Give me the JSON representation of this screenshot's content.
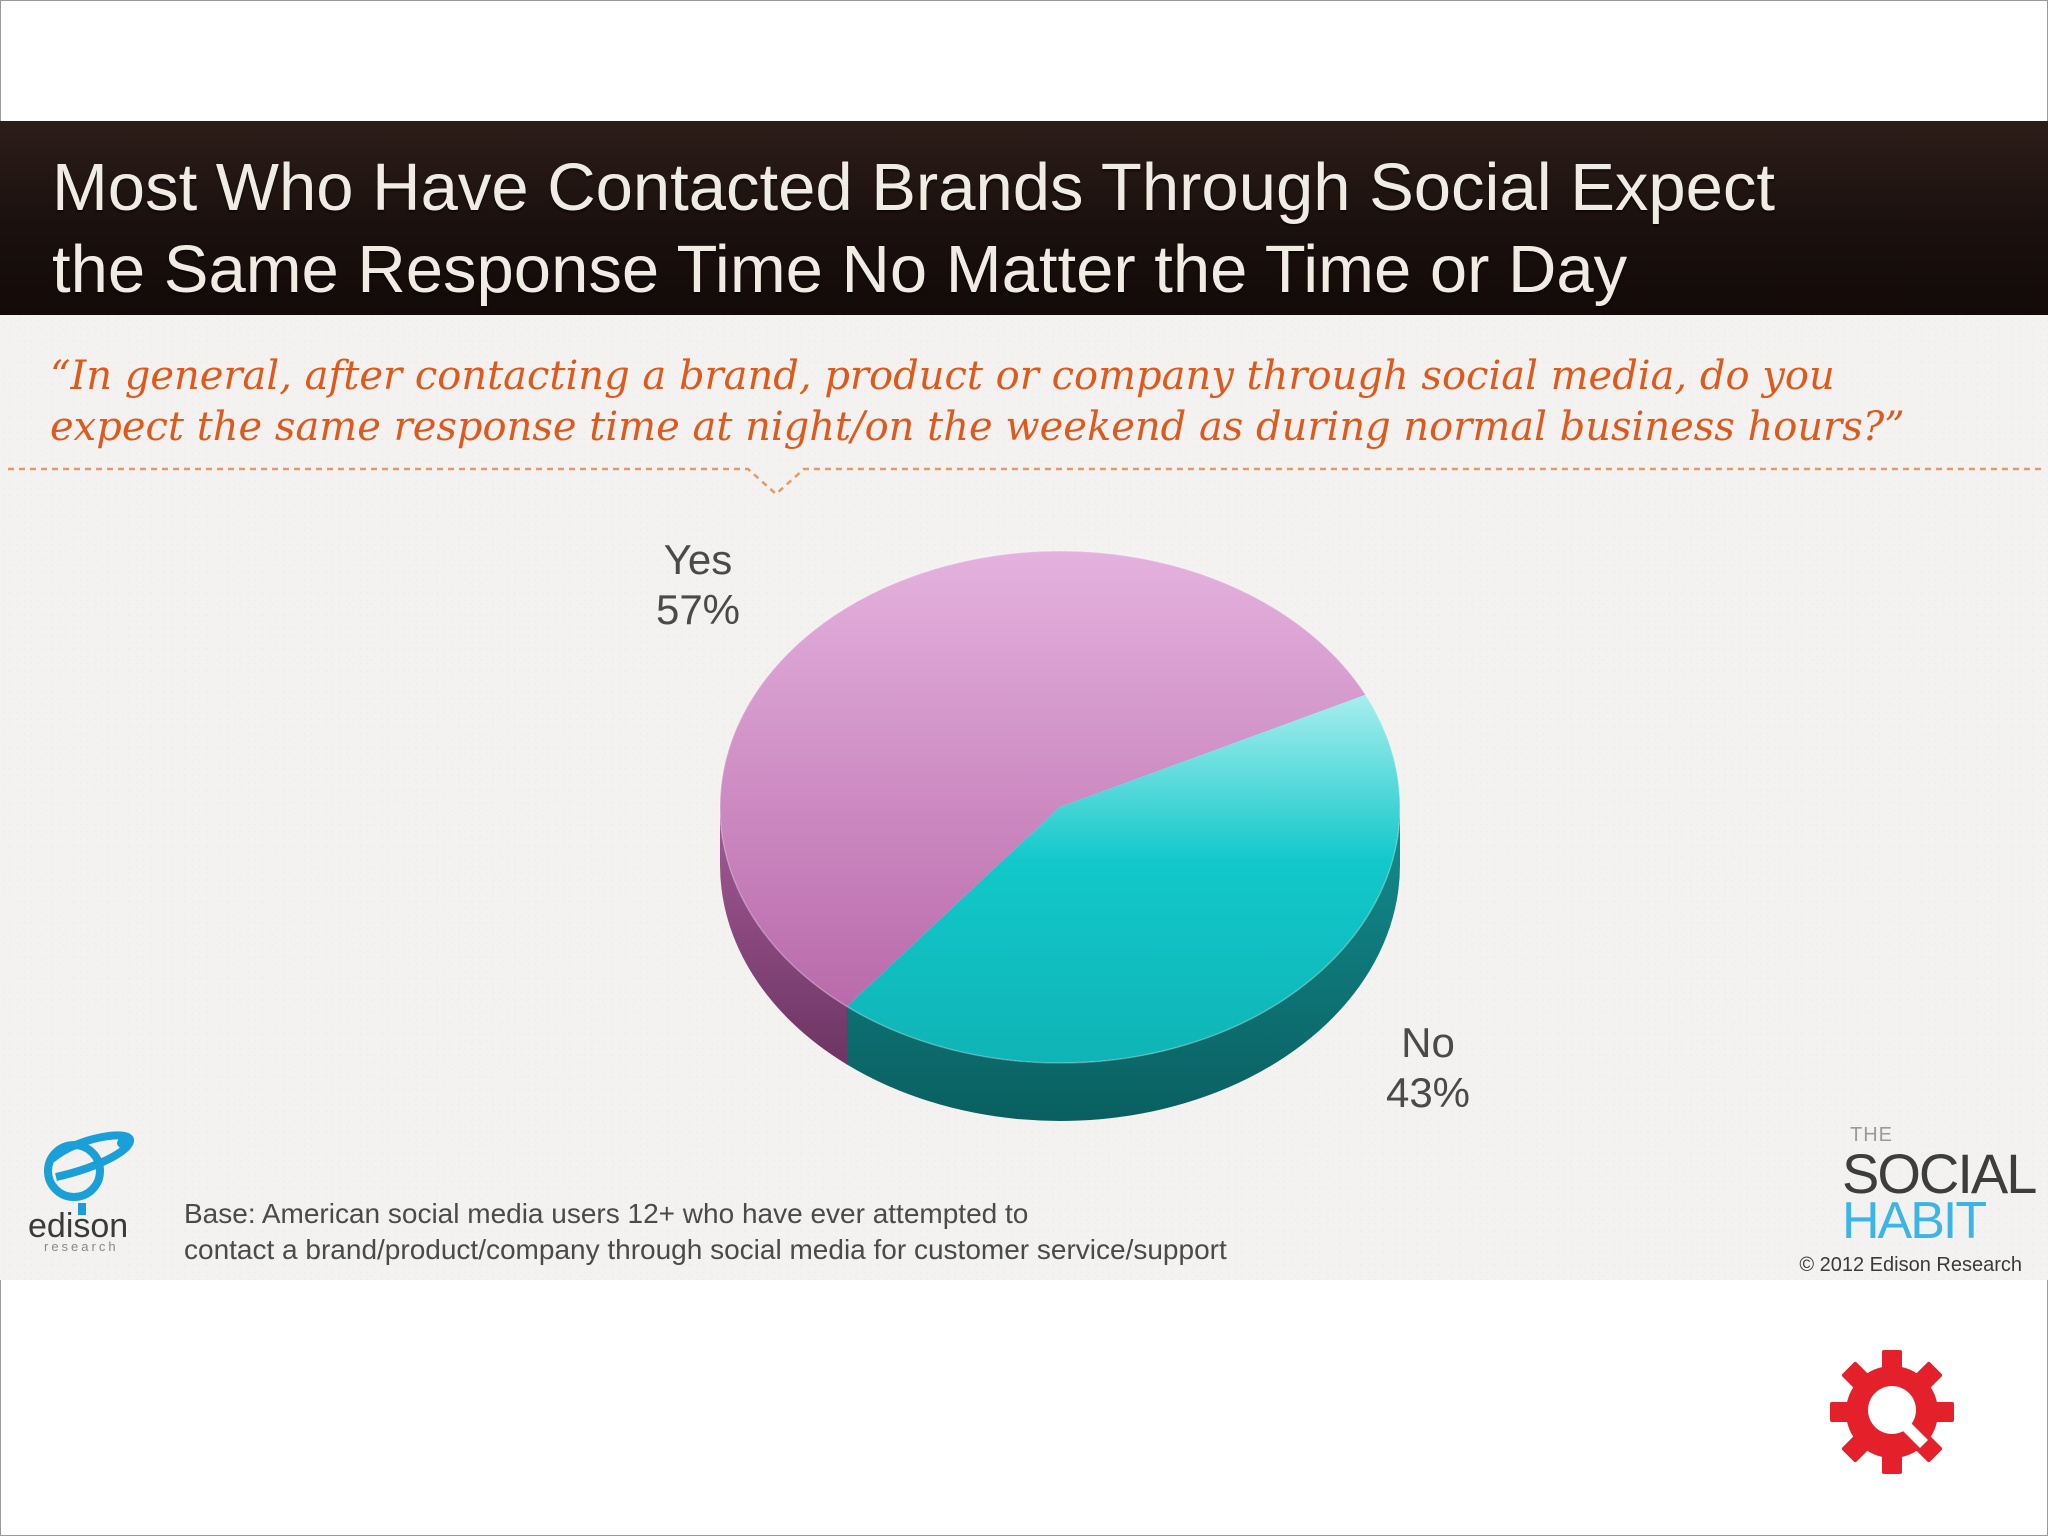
{
  "title": {
    "line1": "Most Who Have Contacted Brands Through Social Expect",
    "line2": "the Same Response Time No Matter the Time or Day"
  },
  "question": {
    "line1": "“In general, after contacting a brand, product or company through social media, do you",
    "line2": "expect the same response time at night/on the weekend as during normal business hours?”"
  },
  "chart_data": {
    "type": "pie",
    "title": "Most Who Have Contacted Brands Through Social Expect the Same Response Time No Matter the Time or Day",
    "categories": [
      "Yes",
      "No"
    ],
    "values": [
      57,
      43
    ],
    "labels": [
      {
        "name": "Yes",
        "value_text": "57%"
      },
      {
        "name": "No",
        "value_text": "43%"
      }
    ],
    "colors": [
      "#cf8cc4",
      "#1fc6c8"
    ],
    "unit": "%"
  },
  "footer": {
    "base_line1": "Base: American social media users 12+ who have ever attempted to",
    "base_line2": "contact a brand/product/company through social media for customer service/support",
    "copyright": "© 2012 Edison Research"
  },
  "logos": {
    "edison": "edison",
    "edison_sub": "research",
    "social_the": "THE",
    "social_social": "SOCIAL",
    "social_habit": "HABIT"
  },
  "icons": {
    "gear": "gear-icon",
    "edison_logo": "edison-logo-icon"
  },
  "colors": {
    "accent_orange": "#dd5a1c",
    "header_dark": "#1a100d",
    "gear_red": "#e4202a"
  }
}
